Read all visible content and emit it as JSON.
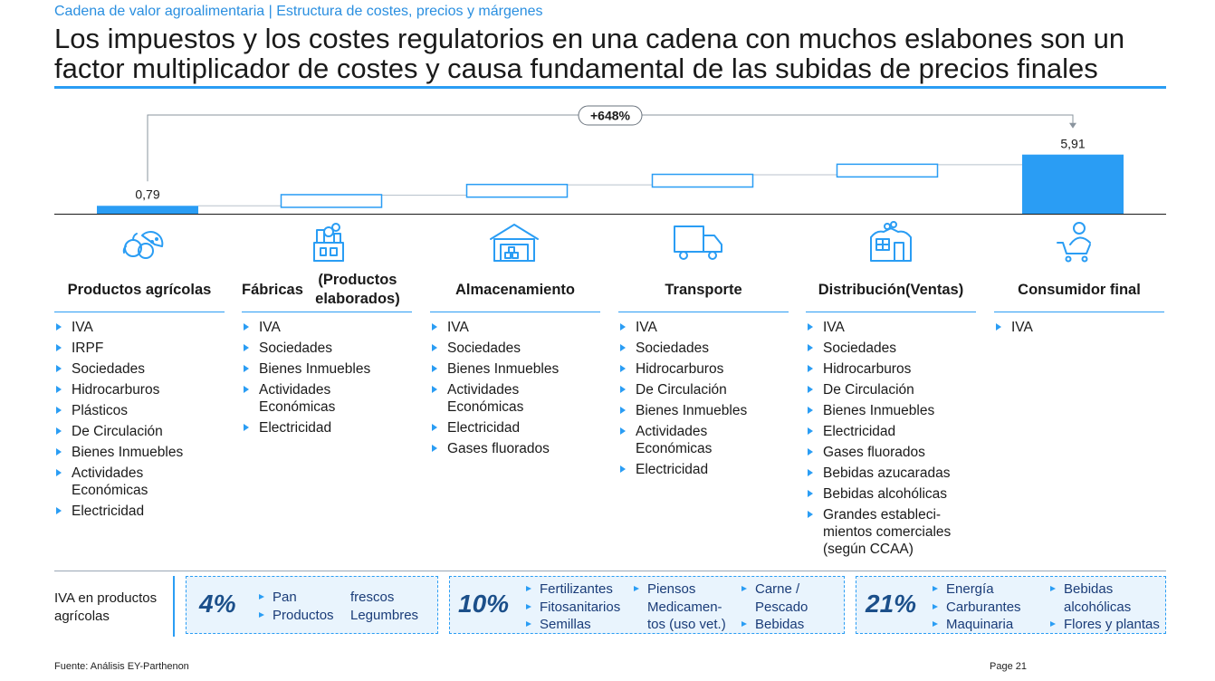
{
  "header": {
    "kicker": "Cadena de valor agroalimentaria | Estructura de costes, precios y márgenes",
    "title": "Los impuestos y los costes regulatorios en una cadena con muchos eslabones son un factor multiplicador de costes y causa fundamental de las subidas de precios finales"
  },
  "chart_data": {
    "type": "bar",
    "categories": [
      "Productos agrícolas",
      "Fábricas (Productos elaborados)",
      "Almacenamiento",
      "Transporte",
      "Distribución (Ventas)",
      "Consumidor final"
    ],
    "start_value": 0.79,
    "end_value": 5.91,
    "start_label": "0,79",
    "end_label": "5,91",
    "change_label": "+648%",
    "intermediate_steps": [
      {
        "from": 0.79,
        "to": 1.86
      },
      {
        "from": 1.86,
        "to": 2.88
      },
      {
        "from": 2.88,
        "to": 3.89
      },
      {
        "from": 3.89,
        "to": 4.9
      }
    ],
    "colors": {
      "bar": "#2a9df4",
      "outline": "#2a9df4",
      "connector": "#b8c2cc",
      "baseline": "#1a1a1a"
    }
  },
  "stages": [
    {
      "icon": "fruits-icon",
      "title": [
        "Productos agrícolas"
      ],
      "taxes": [
        "IVA",
        "IRPF",
        "Sociedades",
        "Hidrocarburos",
        "Plásticos",
        "De Circulación",
        "Bienes Inmuebles",
        "Actividades Económicas",
        "Electricidad"
      ]
    },
    {
      "icon": "factory-products-icon",
      "title": [
        "Fábricas",
        "(Productos elaborados)"
      ],
      "taxes": [
        "IVA",
        "Sociedades",
        "Bienes Inmuebles",
        "Actividades Económicas",
        "Electricidad"
      ]
    },
    {
      "icon": "warehouse-icon",
      "title": [
        "Almacenamiento"
      ],
      "taxes": [
        "IVA",
        "Sociedades",
        "Bienes Inmuebles",
        "Actividades Económicas",
        "Electricidad",
        "Gases fluorados"
      ]
    },
    {
      "icon": "truck-icon",
      "title": [
        "Transporte"
      ],
      "taxes": [
        "IVA",
        "Sociedades",
        "Hidrocarburos",
        "De Circulación",
        "Bienes Inmuebles",
        "Actividades Económicas",
        "Electricidad"
      ]
    },
    {
      "icon": "store-icon",
      "title": [
        "Distribución",
        "(Ventas)"
      ],
      "taxes": [
        "IVA",
        "Sociedades",
        "Hidrocarburos",
        "De Circulación",
        "Bienes Inmuebles",
        "Electricidad",
        "Gases fluorados",
        "Bebidas azucaradas",
        "Bebidas alcohólicas",
        "Grandes estableci-mientos comerciales (según CCAA)"
      ]
    },
    {
      "icon": "shopping-cart-person-icon",
      "title": [
        "Consumidor final"
      ],
      "taxes": [
        "IVA"
      ]
    }
  ],
  "iva": {
    "label": "IVA en productos agrícolas",
    "groups": [
      {
        "rate": "4%",
        "columns": [
          [
            "Pan",
            "Productos"
          ],
          [
            "frescos",
            "Legumbres"
          ]
        ]
      },
      {
        "rate": "10%",
        "columns": [
          [
            "Fertilizantes",
            "Fitosanitarios",
            "Semillas"
          ],
          [
            "Piensos",
            "Medicamen-",
            "tos (uso vet.)"
          ],
          [
            "Carne /",
            "Pescado",
            "Bebidas"
          ]
        ]
      },
      {
        "rate": "21%",
        "columns": [
          [
            "Energía",
            "Carburantes",
            "Maquinaria"
          ],
          [
            "Bebidas",
            "alcohólicas",
            "Flores y plantas"
          ]
        ]
      }
    ]
  },
  "footer": {
    "source": "Fuente:  Análisis EY-Parthenon",
    "page": "Page  21"
  }
}
